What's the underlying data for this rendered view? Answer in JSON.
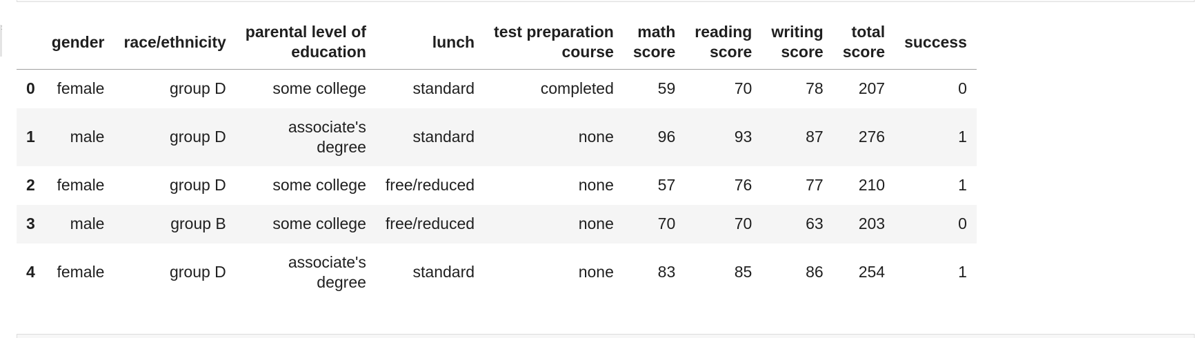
{
  "table": {
    "index_header": "",
    "columns": [
      "gender",
      "race/ethnicity",
      "parental level of\neducation",
      "lunch",
      "test preparation\ncourse",
      "math\nscore",
      "reading\nscore",
      "writing\nscore",
      "total\nscore",
      "success"
    ],
    "column_lines": [
      [
        "gender"
      ],
      [
        "race/ethnicity"
      ],
      [
        "parental level of",
        "education"
      ],
      [
        "lunch"
      ],
      [
        "test preparation",
        "course"
      ],
      [
        "math",
        "score"
      ],
      [
        "reading",
        "score"
      ],
      [
        "writing",
        "score"
      ],
      [
        "total",
        "score"
      ],
      [
        "success"
      ]
    ],
    "rows": [
      {
        "index": "0",
        "gender": "female",
        "race": "group D",
        "parent_lines": [
          "some college"
        ],
        "lunch": "standard",
        "prep": "completed",
        "math": "59",
        "reading": "70",
        "writing": "78",
        "total": "207",
        "success": "0"
      },
      {
        "index": "1",
        "gender": "male",
        "race": "group D",
        "parent_lines": [
          "associate's",
          "degree"
        ],
        "lunch": "standard",
        "prep": "none",
        "math": "96",
        "reading": "93",
        "writing": "87",
        "total": "276",
        "success": "1"
      },
      {
        "index": "2",
        "gender": "female",
        "race": "group D",
        "parent_lines": [
          "some college"
        ],
        "lunch": "free/reduced",
        "prep": "none",
        "math": "57",
        "reading": "76",
        "writing": "77",
        "total": "210",
        "success": "1"
      },
      {
        "index": "3",
        "gender": "male",
        "race": "group B",
        "parent_lines": [
          "some college"
        ],
        "lunch": "free/reduced",
        "prep": "none",
        "math": "70",
        "reading": "70",
        "writing": "63",
        "total": "203",
        "success": "0"
      },
      {
        "index": "4",
        "gender": "female",
        "race": "group D",
        "parent_lines": [
          "associate's",
          "degree"
        ],
        "lunch": "standard",
        "prep": "none",
        "math": "83",
        "reading": "85",
        "writing": "86",
        "total": "254",
        "success": "1"
      }
    ]
  }
}
